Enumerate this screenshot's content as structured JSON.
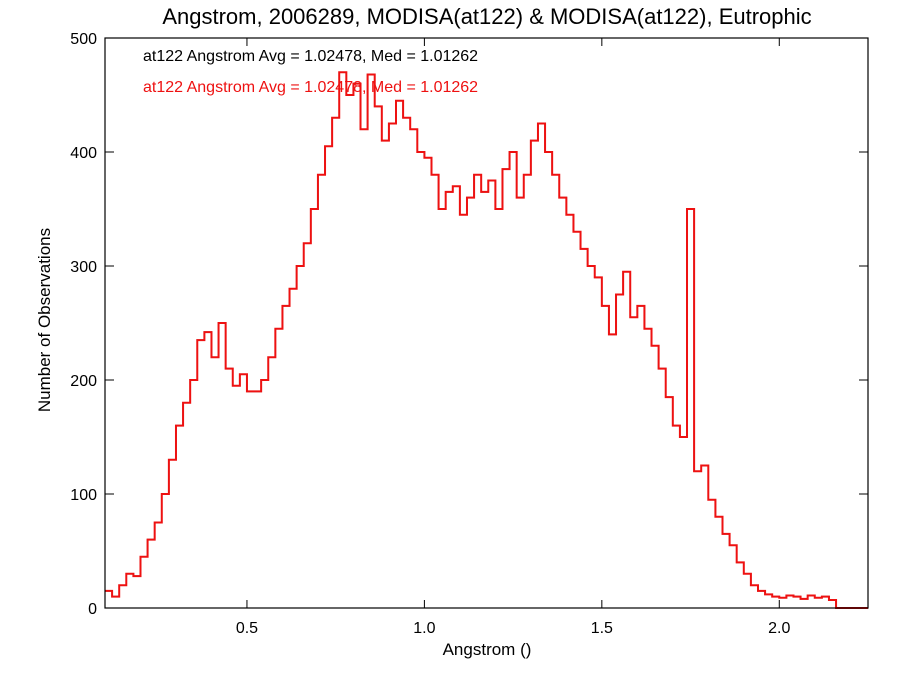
{
  "chart_data": {
    "type": "histogram-step",
    "title": "Angstrom, 2006289, MODISA(at122) & MODISA(at122), Eutrophic",
    "xlabel": "Angstrom ()",
    "ylabel": "Number of Observations",
    "xlim": [
      0.1,
      2.25
    ],
    "ylim": [
      0,
      500
    ],
    "xticks": [
      0.5,
      1.0,
      1.5,
      2.0
    ],
    "xtick_labels": [
      "0.5",
      "1.0",
      "1.5",
      "2.0"
    ],
    "yticks": [
      0,
      100,
      200,
      300,
      400,
      500
    ],
    "ytick_labels": [
      "0",
      "100",
      "200",
      "300",
      "400",
      "500"
    ],
    "grid": false,
    "legend_position": "top-left",
    "legend": [
      {
        "text": "at122 Angstrom Avg = 1.02478, Med = 1.01262",
        "color": "#000000"
      },
      {
        "text": "at122 Angstrom Avg = 1.02478, Med = 1.01262",
        "color": "#ee1111"
      }
    ],
    "series": [
      {
        "color": "#ee1111",
        "overlaps_series_color": "#000000",
        "x_points": [
          [
            0.1,
            15
          ],
          [
            0.12,
            10
          ],
          [
            0.14,
            20
          ],
          [
            0.16,
            30
          ],
          [
            0.18,
            28
          ],
          [
            0.2,
            45
          ],
          [
            0.22,
            60
          ],
          [
            0.24,
            75
          ],
          [
            0.26,
            100
          ],
          [
            0.28,
            130
          ],
          [
            0.3,
            160
          ],
          [
            0.32,
            180
          ],
          [
            0.34,
            200
          ],
          [
            0.36,
            235
          ],
          [
            0.38,
            242
          ],
          [
            0.4,
            220
          ],
          [
            0.42,
            250
          ],
          [
            0.44,
            210
          ],
          [
            0.46,
            195
          ],
          [
            0.48,
            205
          ],
          [
            0.5,
            190
          ],
          [
            0.52,
            190
          ],
          [
            0.54,
            200
          ],
          [
            0.56,
            220
          ],
          [
            0.58,
            245
          ],
          [
            0.6,
            265
          ],
          [
            0.62,
            280
          ],
          [
            0.64,
            300
          ],
          [
            0.66,
            320
          ],
          [
            0.68,
            350
          ],
          [
            0.7,
            380
          ],
          [
            0.72,
            405
          ],
          [
            0.74,
            430
          ],
          [
            0.76,
            470
          ],
          [
            0.78,
            450
          ],
          [
            0.8,
            460
          ],
          [
            0.82,
            420
          ],
          [
            0.84,
            468
          ],
          [
            0.86,
            440
          ],
          [
            0.88,
            410
          ],
          [
            0.9,
            425
          ],
          [
            0.92,
            445
          ],
          [
            0.94,
            430
          ],
          [
            0.96,
            420
          ],
          [
            0.98,
            400
          ],
          [
            1.0,
            395
          ],
          [
            1.02,
            380
          ],
          [
            1.04,
            350
          ],
          [
            1.06,
            365
          ],
          [
            1.08,
            370
          ],
          [
            1.1,
            345
          ],
          [
            1.12,
            360
          ],
          [
            1.14,
            380
          ],
          [
            1.16,
            365
          ],
          [
            1.18,
            375
          ],
          [
            1.2,
            350
          ],
          [
            1.22,
            385
          ],
          [
            1.24,
            400
          ],
          [
            1.26,
            360
          ],
          [
            1.28,
            380
          ],
          [
            1.3,
            410
          ],
          [
            1.32,
            425
          ],
          [
            1.34,
            400
          ],
          [
            1.36,
            380
          ],
          [
            1.38,
            360
          ],
          [
            1.4,
            345
          ],
          [
            1.42,
            330
          ],
          [
            1.44,
            315
          ],
          [
            1.46,
            300
          ],
          [
            1.48,
            290
          ],
          [
            1.5,
            265
          ],
          [
            1.52,
            240
          ],
          [
            1.54,
            275
          ],
          [
            1.56,
            295
          ],
          [
            1.58,
            255
          ],
          [
            1.6,
            265
          ],
          [
            1.62,
            245
          ],
          [
            1.64,
            230
          ],
          [
            1.66,
            210
          ],
          [
            1.68,
            185
          ],
          [
            1.7,
            160
          ],
          [
            1.72,
            150
          ],
          [
            1.74,
            350
          ],
          [
            1.76,
            120
          ],
          [
            1.78,
            125
          ],
          [
            1.8,
            95
          ],
          [
            1.82,
            80
          ],
          [
            1.84,
            65
          ],
          [
            1.86,
            55
          ],
          [
            1.88,
            40
          ],
          [
            1.9,
            30
          ],
          [
            1.92,
            20
          ],
          [
            1.94,
            15
          ],
          [
            1.96,
            12
          ],
          [
            1.98,
            10
          ],
          [
            2.0,
            9
          ],
          [
            2.02,
            11
          ],
          [
            2.04,
            10
          ],
          [
            2.06,
            8
          ],
          [
            2.08,
            11
          ],
          [
            2.1,
            9
          ],
          [
            2.12,
            10
          ],
          [
            2.14,
            7
          ],
          [
            2.16,
            0
          ],
          [
            2.18,
            0
          ],
          [
            2.2,
            0
          ],
          [
            2.22,
            0
          ],
          [
            2.24,
            0
          ]
        ]
      }
    ]
  }
}
